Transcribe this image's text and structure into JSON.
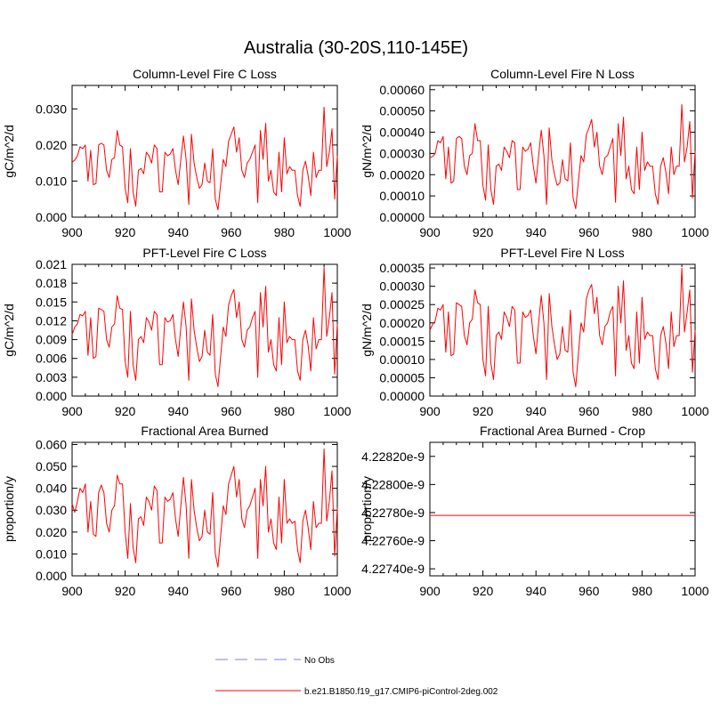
{
  "figure_title": "Australia (30-20S,110-145E)",
  "colors": {
    "series": "#ff0000",
    "obs": "#aaaaee",
    "axis": "#000000"
  },
  "legend": {
    "obs_label": "No Obs",
    "model_label": "b.e21.B1850.f19_g17.CMIP6-piControl-2deg.002"
  },
  "chart_data": [
    {
      "type": "line",
      "title": "Column-Level Fire C Loss",
      "xlabel": "",
      "ylabel": "gC/m^2/d",
      "xlim": [
        900,
        1000
      ],
      "ylim": [
        0,
        0.0365
      ],
      "xticks": [
        900,
        920,
        940,
        960,
        980,
        1000
      ],
      "xtick_labels": [
        "900",
        "920",
        "940",
        "960",
        "980",
        "1000"
      ],
      "yticks": [
        0.0,
        0.01,
        0.02,
        0.03
      ],
      "ytick_labels": [
        "0.000",
        "0.010",
        "0.020",
        "0.030"
      ],
      "series": [
        {
          "name": "b.e21.B1850.f19_g17.CMIP6-piControl-2deg.002",
          "x_start": 900,
          "x_step": 1,
          "values": [
            0.0152,
            0.0158,
            0.017,
            0.0195,
            0.019,
            0.02,
            0.01,
            0.0185,
            0.009,
            0.0093,
            0.02,
            0.0205,
            0.02,
            0.013,
            0.011,
            0.016,
            0.0165,
            0.024,
            0.02,
            0.0195,
            0.008,
            0.004,
            0.019,
            0.007,
            0.003,
            0.013,
            0.0135,
            0.012,
            0.018,
            0.017,
            0.015,
            0.02,
            0.019,
            0.007,
            0.007,
            0.018,
            0.017,
            0.0175,
            0.019,
            0.013,
            0.009,
            0.016,
            0.0225,
            0.016,
            0.0035,
            0.023,
            0.015,
            0.011,
            0.008,
            0.009,
            0.015,
            0.01,
            0.0095,
            0.019,
            0.005,
            0.002,
            0.009,
            0.016,
            0.014,
            0.021,
            0.023,
            0.025,
            0.018,
            0.022,
            0.013,
            0.011,
            0.015,
            0.016,
            0.018,
            0.02,
            0.004,
            0.024,
            0.016,
            0.026,
            0.01,
            0.013,
            0.007,
            0.006,
            0.018,
            0.007,
            0.022,
            0.012,
            0.014,
            0.013,
            0.013,
            0.006,
            0.003,
            0.013,
            0.0155,
            0.0115,
            0.006,
            0.018,
            0.011,
            0.013,
            0.013,
            0.0305,
            0.014,
            0.018,
            0.0245,
            0.005,
            0.017
          ]
        }
      ]
    },
    {
      "type": "line",
      "title": "Column-Level Fire N Loss",
      "xlabel": "",
      "ylabel": "gN/m^2/d",
      "xlim": [
        900,
        1000
      ],
      "ylim": [
        0,
        0.00062
      ],
      "xticks": [
        900,
        920,
        940,
        960,
        980,
        1000
      ],
      "xtick_labels": [
        "900",
        "920",
        "940",
        "960",
        "980",
        "1000"
      ],
      "yticks": [
        0.0,
        0.0001,
        0.0002,
        0.0003,
        0.0004,
        0.0005,
        0.0006
      ],
      "ytick_labels": [
        "0.00000",
        "0.00010",
        "0.00020",
        "0.00030",
        "0.00040",
        "0.00050",
        "0.00060"
      ],
      "series": [
        {
          "name": "b.e21.B1850.f19_g17.CMIP6-piControl-2deg.002",
          "x_start": 900,
          "x_step": 1,
          "values": [
            0.00028,
            0.000285,
            0.0003,
            0.00036,
            0.00035,
            0.00038,
            0.00018,
            0.00033,
            0.00016,
            0.00017,
            0.00037,
            0.00038,
            0.00037,
            0.00024,
            0.0002,
            0.00029,
            0.0003,
            0.00044,
            0.00036,
            0.00036,
            0.00015,
            8e-05,
            0.00034,
            0.00013,
            6e-05,
            0.00024,
            0.00025,
            0.00022,
            0.00033,
            0.00031,
            0.00028,
            0.00036,
            0.00035,
            0.00013,
            0.00013,
            0.00033,
            0.00031,
            0.00032,
            0.00035,
            0.00024,
            0.00016,
            0.00029,
            0.00041,
            0.00029,
            6e-05,
            0.00042,
            0.00027,
            0.0002,
            0.00015,
            0.00016,
            0.00027,
            0.00018,
            0.00017,
            0.00035,
            9e-05,
            4e-05,
            0.00017,
            0.00029,
            0.00026,
            0.00039,
            0.00042,
            0.00046,
            0.00033,
            0.0004,
            0.00024,
            0.0002,
            0.00028,
            0.00029,
            0.00033,
            0.00037,
            7e-05,
            0.00044,
            0.00029,
            0.00047,
            0.00018,
            0.00024,
            0.00013,
            0.00011,
            0.00033,
            0.00013,
            0.0004,
            0.00022,
            0.00026,
            0.00024,
            0.00024,
            0.00011,
            6e-05,
            0.00024,
            0.00028,
            0.00021,
            0.00011,
            0.00033,
            0.0002,
            0.00024,
            0.00024,
            0.00053,
            0.00026,
            0.00033,
            0.00045,
            9e-05,
            0.00031
          ]
        }
      ]
    },
    {
      "type": "line",
      "title": "PFT-Level Fire C Loss",
      "xlabel": "",
      "ylabel": "gC/m^2/d",
      "xlim": [
        900,
        1000
      ],
      "ylim": [
        0,
        0.021
      ],
      "xticks": [
        900,
        920,
        940,
        960,
        980,
        1000
      ],
      "xtick_labels": [
        "900",
        "920",
        "940",
        "960",
        "980",
        "1000"
      ],
      "yticks": [
        0.0,
        0.003,
        0.006,
        0.009,
        0.012,
        0.015,
        0.018,
        0.021
      ],
      "ytick_labels": [
        "0.000",
        "0.003",
        "0.006",
        "0.009",
        "0.012",
        "0.015",
        "0.018",
        "0.021"
      ],
      "series": [
        {
          "name": "b.e21.B1850.f19_g17.CMIP6-piControl-2deg.002",
          "x_start": 900,
          "x_step": 1,
          "values": [
            0.0098,
            0.011,
            0.0115,
            0.013,
            0.0128,
            0.0135,
            0.0065,
            0.0125,
            0.006,
            0.0063,
            0.014,
            0.0138,
            0.0135,
            0.009,
            0.0078,
            0.011,
            0.0115,
            0.016,
            0.014,
            0.0138,
            0.0055,
            0.003,
            0.0135,
            0.005,
            0.0025,
            0.009,
            0.0095,
            0.0085,
            0.0125,
            0.0118,
            0.0105,
            0.0135,
            0.013,
            0.005,
            0.005,
            0.0125,
            0.0118,
            0.012,
            0.013,
            0.009,
            0.0063,
            0.011,
            0.015,
            0.011,
            0.0025,
            0.0155,
            0.0105,
            0.0078,
            0.0055,
            0.0063,
            0.0105,
            0.007,
            0.0065,
            0.013,
            0.0035,
            0.0015,
            0.0063,
            0.011,
            0.0095,
            0.0145,
            0.016,
            0.017,
            0.0125,
            0.015,
            0.009,
            0.0078,
            0.0105,
            0.011,
            0.0125,
            0.0135,
            0.003,
            0.0165,
            0.011,
            0.0175,
            0.007,
            0.009,
            0.005,
            0.004,
            0.0125,
            0.005,
            0.015,
            0.0085,
            0.0095,
            0.009,
            0.009,
            0.004,
            0.0025,
            0.009,
            0.0105,
            0.008,
            0.004,
            0.0125,
            0.0075,
            0.009,
            0.009,
            0.0205,
            0.0095,
            0.0125,
            0.0165,
            0.0035,
            0.0115
          ]
        }
      ]
    },
    {
      "type": "line",
      "title": "PFT-Level Fire N Loss",
      "xlabel": "",
      "ylabel": "gN/m^2/d",
      "xlim": [
        900,
        1000
      ],
      "ylim": [
        0,
        0.00036
      ],
      "xticks": [
        900,
        920,
        940,
        960,
        980,
        1000
      ],
      "xtick_labels": [
        "900",
        "920",
        "940",
        "960",
        "980",
        "1000"
      ],
      "yticks": [
        0.0,
        5e-05,
        0.0001,
        0.00015,
        0.0002,
        0.00025,
        0.0003,
        0.00035
      ],
      "ytick_labels": [
        "0.00000",
        "0.00005",
        "0.00010",
        "0.00015",
        "0.00020",
        "0.00025",
        "0.00030",
        "0.00035"
      ],
      "series": [
        {
          "name": "b.e21.B1850.f19_g17.CMIP6-piControl-2deg.002",
          "x_start": 900,
          "x_step": 1,
          "values": [
            0.00018,
            0.000195,
            0.000205,
            0.00024,
            0.000235,
            0.00025,
            0.00012,
            0.00023,
            0.00011,
            0.000115,
            0.000255,
            0.00025,
            0.000245,
            0.000165,
            0.00014,
            0.0002,
            0.00021,
            0.00029,
            0.000255,
            0.00025,
            0.0001,
            5.5e-05,
            0.000245,
            9e-05,
            4.5e-05,
            0.000165,
            0.000175,
            0.000155,
            0.00023,
            0.000215,
            0.00019,
            0.000245,
            0.000235,
            9e-05,
            9e-05,
            0.00023,
            0.000215,
            0.00022,
            0.000235,
            0.000165,
            0.000115,
            0.0002,
            0.000275,
            0.0002,
            4.5e-05,
            0.00028,
            0.00019,
            0.00014,
            0.0001,
            0.000115,
            0.00019,
            0.000125,
            0.00012,
            0.000235,
            6.5e-05,
            2.5e-05,
            0.000115,
            0.0002,
            0.000175,
            0.000265,
            0.00029,
            0.000305,
            0.000225,
            0.00027,
            0.000165,
            0.00014,
            0.00019,
            0.0002,
            0.00023,
            0.000245,
            5.5e-05,
            0.0003,
            0.0002,
            0.000315,
            0.000125,
            0.000165,
            9e-05,
            7.5e-05,
            0.00023,
            9e-05,
            0.00027,
            0.000155,
            0.000175,
            0.000165,
            0.000165,
            7.5e-05,
            4.5e-05,
            0.000165,
            0.00019,
            0.000145,
            7.5e-05,
            0.00023,
            0.000135,
            0.000165,
            0.000165,
            0.00035,
            0.000175,
            0.00023,
            0.00029,
            6.5e-05,
            0.00018
          ]
        }
      ]
    },
    {
      "type": "line",
      "title": "Fractional Area Burned",
      "xlabel": "",
      "ylabel": "proportion/y",
      "xlim": [
        900,
        1000
      ],
      "ylim": [
        0,
        0.061
      ],
      "xticks": [
        900,
        920,
        940,
        960,
        980,
        1000
      ],
      "xtick_labels": [
        "900",
        "920",
        "940",
        "960",
        "980",
        "1000"
      ],
      "yticks": [
        0.0,
        0.01,
        0.02,
        0.03,
        0.04,
        0.05,
        0.06
      ],
      "ytick_labels": [
        "0.000",
        "0.010",
        "0.020",
        "0.030",
        "0.040",
        "0.050",
        "0.060"
      ],
      "series": [
        {
          "name": "b.e21.B1850.f19_g17.CMIP6-piControl-2deg.002",
          "x_start": 900,
          "x_step": 1,
          "values": [
            0.033,
            0.029,
            0.034,
            0.04,
            0.038,
            0.042,
            0.02,
            0.034,
            0.019,
            0.018,
            0.038,
            0.0415,
            0.038,
            0.024,
            0.02,
            0.03,
            0.032,
            0.046,
            0.042,
            0.042,
            0.02,
            0.008,
            0.033,
            0.013,
            0.006,
            0.026,
            0.027,
            0.023,
            0.036,
            0.034,
            0.03,
            0.041,
            0.039,
            0.015,
            0.015,
            0.036,
            0.034,
            0.035,
            0.038,
            0.026,
            0.018,
            0.032,
            0.045,
            0.032,
            0.008,
            0.044,
            0.03,
            0.022,
            0.016,
            0.018,
            0.03,
            0.02,
            0.019,
            0.038,
            0.01,
            0.004,
            0.018,
            0.032,
            0.028,
            0.042,
            0.046,
            0.05,
            0.036,
            0.044,
            0.026,
            0.022,
            0.03,
            0.032,
            0.036,
            0.04,
            0.008,
            0.044,
            0.032,
            0.05,
            0.02,
            0.026,
            0.015,
            0.012,
            0.036,
            0.015,
            0.044,
            0.024,
            0.026,
            0.024,
            0.025,
            0.012,
            0.006,
            0.025,
            0.03,
            0.022,
            0.012,
            0.034,
            0.022,
            0.024,
            0.024,
            0.058,
            0.025,
            0.034,
            0.048,
            0.009,
            0.031
          ]
        }
      ]
    },
    {
      "type": "line",
      "title": "Fractional Area Burned - Crop",
      "xlabel": "",
      "ylabel": "proportion/y",
      "xlim": [
        900,
        1000
      ],
      "ylim": [
        4.22735e-09,
        4.2283e-09
      ],
      "xticks": [
        900,
        920,
        940,
        960,
        980,
        1000
      ],
      "xtick_labels": [
        "900",
        "920",
        "940",
        "960",
        "980",
        "1000"
      ],
      "yticks": [
        4.2274e-09,
        4.2276e-09,
        4.2278e-09,
        4.228e-09,
        4.2282e-09
      ],
      "ytick_labels": [
        "4.22740e-9",
        "4.22760e-9",
        "4.22780e-9",
        "4.22800e-9",
        "4.22820e-9"
      ],
      "series": [
        {
          "name": "b.e21.B1850.f19_g17.CMIP6-piControl-2deg.002",
          "x_start": 900,
          "x_step": 100,
          "values": [
            4.22778e-09,
            4.22778e-09
          ]
        }
      ]
    }
  ]
}
